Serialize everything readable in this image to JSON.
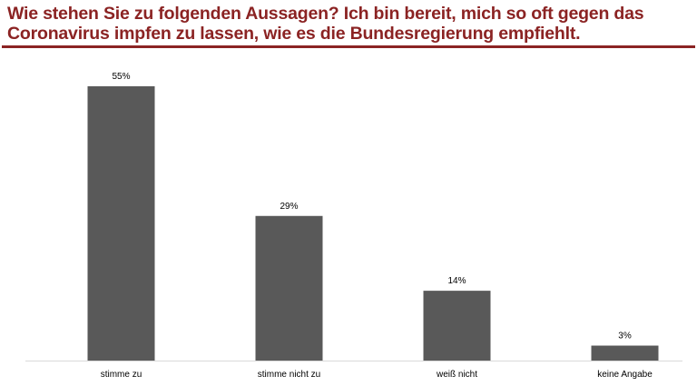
{
  "title_line1": "Wie stehen Sie zu folgenden Aussagen? Ich bin bereit, mich so oft gegen das",
  "title_line2": "Coronavirus impfen zu lassen, wie es die Bundesregierung empfiehlt.",
  "colors": {
    "title": "#8b2323",
    "bar": "#595959",
    "axis": "#d9d9d9"
  },
  "chart_data": {
    "type": "bar",
    "title": "Wie stehen Sie zu folgenden Aussagen? Ich bin bereit, mich so oft gegen das Coronavirus impfen zu lassen, wie es die Bundesregierung empfiehlt.",
    "categories": [
      "stimme zu",
      "stimme nicht zu",
      "weiß nicht",
      "keine Angabe"
    ],
    "values": [
      55,
      29,
      14,
      3
    ],
    "data_labels": [
      "55%",
      "29%",
      "14%",
      "3%"
    ],
    "unit": "%",
    "xlabel": "",
    "ylabel": "",
    "ylim": [
      0,
      55
    ],
    "grid": false,
    "legend": "none"
  }
}
